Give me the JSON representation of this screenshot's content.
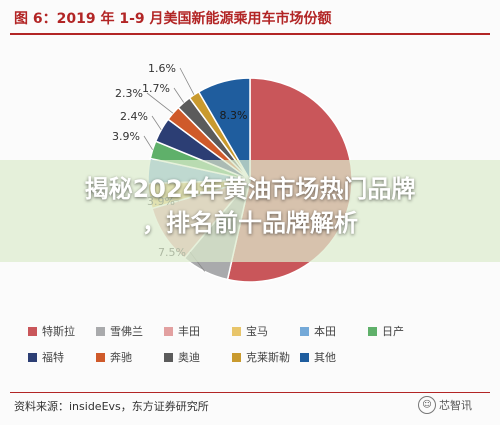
{
  "figure": {
    "title": "图 6：2019 年 1-9 月美国新能源乘用车市场份额",
    "source": "资料来源：insideEvs，东方证券研究所",
    "headline_line1": "揭秘2024年黄油市场热门品牌",
    "headline_line2": "，排名前十品牌解析",
    "watermark": "芯智讯"
  },
  "chart_data": {
    "type": "pie",
    "title": "图 6：2019 年 1-9 月美国新能源乘用车市场份额",
    "categories": [
      "特斯拉",
      "雪佛兰",
      "丰田",
      "宝马",
      "本田",
      "日产",
      "福特",
      "奔驰",
      "奥迪",
      "克莱斯勒",
      "其他"
    ],
    "values": [
      53.0,
      7.5,
      9.3,
      3.9,
      3.9,
      2.8,
      3.9,
      2.4,
      2.3,
      1.7,
      8.3
    ],
    "visible_labels": [
      "1.6%",
      "1.7%",
      "2.3%",
      "2.4%",
      "3.9%",
      "3.9%",
      "7.5%",
      "8.3%"
    ],
    "colors": [
      "#c9565a",
      "#a9aaac",
      "#e2a0a0",
      "#e8c56a",
      "#74a9d8",
      "#5fb06a",
      "#2c3e74",
      "#cf5a2a",
      "#5b5b5b",
      "#c99a2e",
      "#1f5d9e"
    ],
    "legend_position": "bottom"
  }
}
